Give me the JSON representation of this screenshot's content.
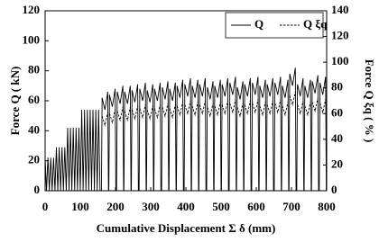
{
  "chart_data": {
    "type": "line",
    "xlabel": "Cumulative Displacement Σ δ (mm)",
    "ylabel": "Force Q ( kN)",
    "y2label": "Force Q ξq ( % )",
    "xlim": [
      0,
      800
    ],
    "xticks": [
      0,
      100,
      200,
      300,
      400,
      500,
      600,
      700,
      800
    ],
    "ylim": [
      0,
      120
    ],
    "yticks": [
      0,
      20,
      40,
      60,
      80,
      100,
      120
    ],
    "y2lim": [
      0,
      140
    ],
    "y2ticks": [
      0,
      20,
      40,
      60,
      80,
      100,
      120,
      140
    ],
    "legend": "upper right",
    "series": [
      {
        "name": "Q",
        "color": "#000000",
        "dash": "solid",
        "x": [
          0,
          4,
          8,
          12,
          16,
          20,
          24,
          28,
          32,
          36,
          40,
          44,
          48,
          52,
          56,
          60,
          64,
          68,
          72,
          76,
          80,
          84,
          88,
          92,
          96,
          100,
          104,
          108,
          112,
          116,
          120,
          124,
          128,
          132,
          136,
          140,
          144,
          148,
          152,
          156,
          160,
          162,
          170,
          178,
          180,
          181,
          183,
          191,
          199,
          201,
          203,
          205,
          213,
          221,
          223,
          224,
          226,
          234,
          242,
          244,
          245,
          247,
          255,
          263,
          265,
          267,
          269,
          277,
          285,
          287,
          288,
          290,
          298,
          306,
          308,
          309,
          311,
          319,
          327,
          329,
          331,
          333,
          341,
          349,
          351,
          352,
          354,
          362,
          370,
          372,
          373,
          375,
          383,
          391,
          393,
          395,
          397,
          405,
          413,
          415,
          416,
          418,
          426,
          434,
          436,
          437,
          439,
          447,
          455,
          457,
          459,
          461,
          469,
          477,
          479,
          480,
          482,
          490,
          498,
          500,
          501,
          503,
          511,
          519,
          521,
          523,
          525,
          533,
          541,
          543,
          544,
          546,
          554,
          562,
          564,
          565,
          567,
          575,
          583,
          585,
          587,
          589,
          597,
          605,
          607,
          608,
          610,
          618,
          626,
          628,
          629,
          631,
          639,
          647,
          649,
          651,
          653,
          661,
          669,
          671,
          672,
          674,
          682,
          690,
          692,
          693,
          695,
          703,
          711,
          713,
          715,
          717,
          725,
          733,
          735,
          736,
          738,
          746,
          754,
          756,
          757,
          759,
          767,
          775,
          777,
          779,
          781,
          789,
          797,
          799
        ],
        "values": [
          22,
          0,
          22,
          0,
          22,
          0,
          22,
          0,
          29,
          0,
          29,
          0,
          29,
          0,
          29,
          0,
          42,
          0,
          42,
          0,
          42,
          0,
          42,
          0,
          42,
          0,
          54,
          0,
          54,
          0,
          54,
          0,
          54,
          0,
          54,
          0,
          54,
          0,
          54,
          0,
          0,
          62,
          54,
          66,
          0,
          0,
          64,
          56,
          68,
          0,
          0,
          66,
          58,
          70,
          0,
          0,
          66,
          58,
          70,
          0,
          0,
          67,
          59,
          71,
          0,
          0,
          68,
          60,
          72,
          0,
          0,
          67,
          59,
          71,
          0,
          0,
          68,
          60,
          72,
          0,
          0,
          69,
          61,
          73,
          0,
          0,
          68,
          60,
          72,
          0,
          0,
          70,
          62,
          74,
          0,
          0,
          71,
          63,
          75,
          0,
          0,
          70,
          62,
          74,
          0,
          0,
          71,
          63,
          75,
          0,
          0,
          69,
          61,
          73,
          0,
          0,
          70,
          62,
          74,
          0,
          0,
          71,
          63,
          75,
          0,
          0,
          72,
          64,
          76,
          0,
          0,
          69,
          61,
          73,
          0,
          0,
          71,
          63,
          75,
          0,
          0,
          72,
          64,
          76,
          0,
          0,
          70,
          62,
          74,
          0,
          0,
          71,
          63,
          75,
          0,
          0,
          72,
          64,
          76,
          0,
          0,
          70,
          62,
          74,
          0,
          0,
          78,
          70,
          82,
          0,
          0,
          71,
          63,
          75,
          0,
          0,
          70,
          62,
          74,
          0,
          0,
          73,
          65,
          77,
          0,
          0,
          72,
          64,
          76,
          0
        ]
      },
      {
        "name": "Q ξq",
        "color": "#000000",
        "dash": "dashed",
        "axis": "y2",
        "x": [
          162,
          170,
          178,
          179,
          183,
          191,
          199,
          200,
          205,
          213,
          221,
          222,
          226,
          234,
          242,
          243,
          247,
          255,
          263,
          264,
          269,
          277,
          285,
          286,
          290,
          298,
          306,
          307,
          311,
          319,
          327,
          328,
          333,
          341,
          349,
          350,
          354,
          362,
          370,
          371,
          375,
          383,
          391,
          392,
          397,
          405,
          413,
          414,
          418,
          426,
          434,
          435,
          439,
          447,
          455,
          456,
          461,
          469,
          477,
          478,
          482,
          490,
          498,
          499,
          503,
          511,
          519,
          520,
          525,
          533,
          541,
          542,
          546,
          554,
          562,
          563,
          567,
          575,
          583,
          584,
          589,
          597,
          605,
          606,
          610,
          618,
          626,
          627,
          631,
          639,
          647,
          648,
          653,
          661,
          669,
          670,
          674,
          682,
          690,
          691,
          695,
          703,
          711,
          712,
          717,
          725,
          733,
          734,
          738,
          746,
          754,
          755,
          759,
          767,
          775,
          776,
          781,
          789,
          797
        ],
        "values": [
          58,
          51,
          61,
          null,
          60,
          53,
          63,
          null,
          62,
          55,
          65,
          null,
          62,
          55,
          65,
          null,
          63,
          56,
          66,
          null,
          64,
          57,
          67,
          null,
          63,
          56,
          66,
          null,
          64,
          57,
          67,
          null,
          65,
          58,
          68,
          null,
          64,
          57,
          67,
          null,
          66,
          59,
          69,
          null,
          67,
          60,
          70,
          null,
          66,
          59,
          69,
          null,
          67,
          60,
          70,
          null,
          65,
          58,
          68,
          null,
          66,
          59,
          69,
          null,
          67,
          60,
          70,
          null,
          68,
          61,
          71,
          null,
          65,
          58,
          68,
          null,
          67,
          60,
          70,
          null,
          68,
          61,
          71,
          null,
          66,
          59,
          69,
          null,
          67,
          60,
          70,
          null,
          68,
          61,
          71,
          null,
          66,
          59,
          69,
          null,
          74,
          67,
          77,
          null,
          67,
          60,
          70,
          null,
          66,
          59,
          69,
          null,
          69,
          62,
          72,
          null,
          68,
          61,
          71
        ]
      }
    ]
  }
}
